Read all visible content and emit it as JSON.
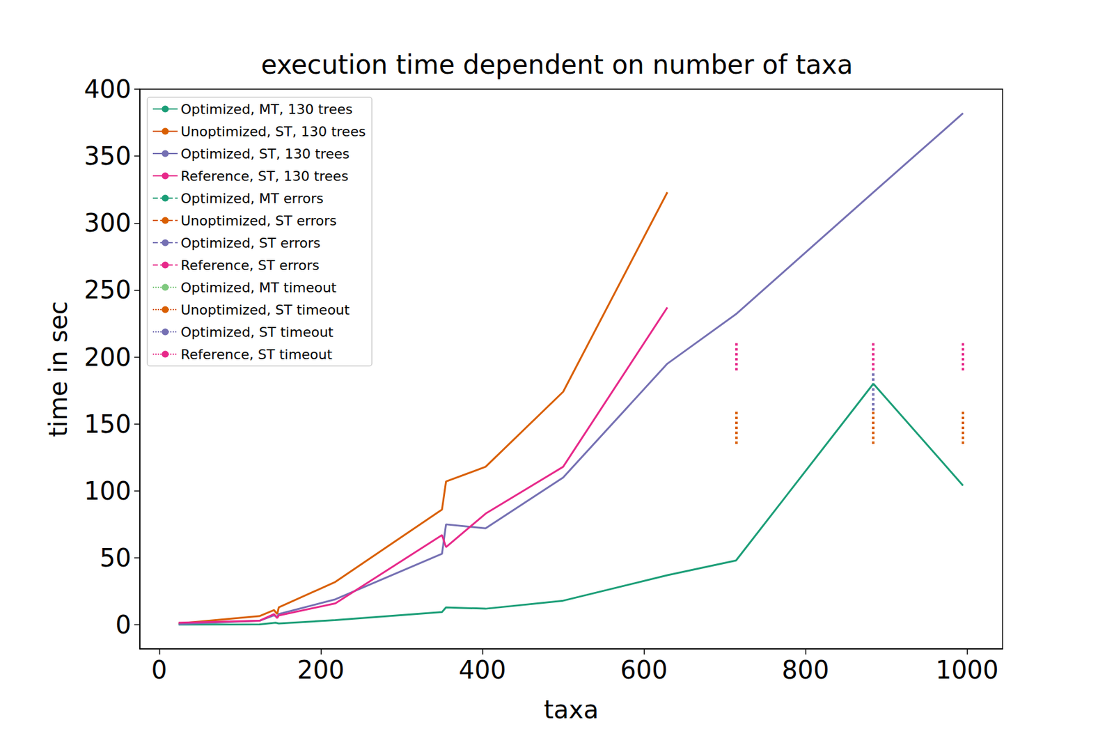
{
  "chart_data": {
    "type": "line",
    "title": "execution time dependent on number of taxa",
    "x_label": "taxa",
    "y_label": "time in sec",
    "xlim": [
      -24,
      1044
    ],
    "xticks": [
      0,
      200,
      400,
      600,
      800,
      1000
    ],
    "ylim": [
      -18,
      400
    ],
    "yticks": [
      0,
      50,
      100,
      150,
      200,
      250,
      300,
      350,
      400
    ],
    "grid": false,
    "legend": "upper left",
    "series": [
      {
        "name": "Optimized, MT, 130 trees",
        "color": "#1b9e77",
        "line_style": "solid",
        "x": [
          24,
          124,
          144,
          148,
          218,
          350,
          355,
          404,
          500,
          629,
          714,
          884,
          995
        ],
        "values": [
          0.1,
          0.3,
          1.5,
          1,
          3.5,
          9.5,
          13,
          12,
          18,
          37,
          48,
          180,
          104
        ]
      },
      {
        "name": "Unoptimized, ST, 130 trees",
        "color": "#d95f02",
        "line_style": "solid",
        "x": [
          24,
          124,
          142,
          146,
          148,
          218,
          350,
          355,
          404,
          500,
          629
        ],
        "values": [
          1,
          6.5,
          11,
          8,
          13,
          32,
          86,
          107,
          118,
          174,
          323
        ]
      },
      {
        "name": "Optimized, ST, 130 trees",
        "color": "#7570b3",
        "line_style": "solid",
        "x": [
          24,
          124,
          142,
          146,
          148,
          218,
          350,
          355,
          404,
          500,
          629,
          714,
          884,
          995
        ],
        "values": [
          0.5,
          3,
          7,
          6,
          8,
          19,
          53,
          75,
          72,
          110,
          195,
          232,
          323,
          382
        ]
      },
      {
        "name": "Reference, ST, 130 trees",
        "color": "#e7298a",
        "line_style": "solid",
        "x": [
          24,
          124,
          142,
          146,
          148,
          218,
          350,
          355,
          404,
          500,
          629
        ],
        "values": [
          1.5,
          3,
          8,
          5,
          7,
          16,
          67,
          58,
          83,
          118,
          237
        ]
      },
      {
        "name": "Optimized, MT errors",
        "color": "#1b9e77",
        "line_style": "dashed",
        "x": [],
        "values": []
      },
      {
        "name": "Unoptimized, ST errors",
        "color": "#d95f02",
        "line_style": "dashed",
        "x": [],
        "values": []
      },
      {
        "name": "Optimized, ST errors",
        "color": "#7570b3",
        "line_style": "dashed",
        "x": [],
        "values": []
      },
      {
        "name": "Reference, ST errors",
        "color": "#e7298a",
        "line_style": "dashed",
        "x": [],
        "values": []
      },
      {
        "name": "Optimized, MT timeout",
        "color": "#7fc97f",
        "line_style": "dotted",
        "type": "vlines",
        "x": [],
        "low": [],
        "high": []
      },
      {
        "name": "Unoptimized, ST timeout",
        "color": "#d95f02",
        "line_style": "dotted",
        "type": "vlines",
        "x": [
          714,
          884,
          995
        ],
        "low": [
          135,
          135,
          135
        ],
        "high": [
          160,
          160,
          160
        ]
      },
      {
        "name": "Optimized, ST timeout",
        "color": "#7570b3",
        "line_style": "dotted",
        "type": "vlines",
        "x": [
          884
        ],
        "low": [
          160
        ],
        "high": [
          188
        ]
      },
      {
        "name": "Reference, ST timeout",
        "color": "#e7298a",
        "line_style": "dotted",
        "type": "vlines",
        "x": [
          714,
          884,
          995
        ],
        "low": [
          190,
          190,
          190
        ],
        "high": [
          212,
          212,
          212
        ]
      }
    ]
  }
}
